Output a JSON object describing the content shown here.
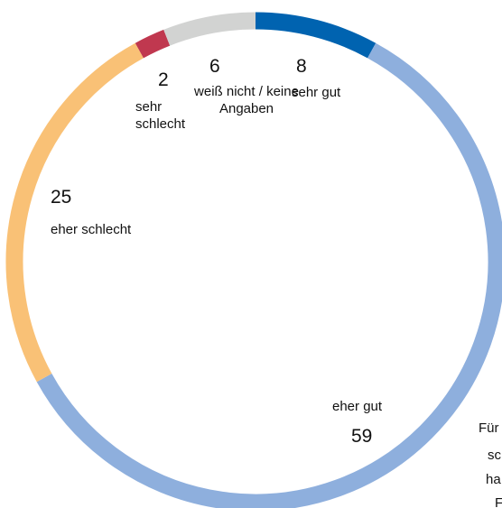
{
  "chart_data": {
    "type": "donut",
    "categories": [
      "sehr gut",
      "eher gut",
      "eher schlecht",
      "sehr schlecht",
      "weiß nicht / keine Angaben"
    ],
    "values": [
      8,
      59,
      25,
      2,
      6
    ],
    "colors": [
      "#0063b0",
      "#8eafdd",
      "#f9c176",
      "#c0384f",
      "#d2d3d2"
    ],
    "annotations": [
      "Für",
      "sc",
      "ha",
      "F"
    ]
  }
}
